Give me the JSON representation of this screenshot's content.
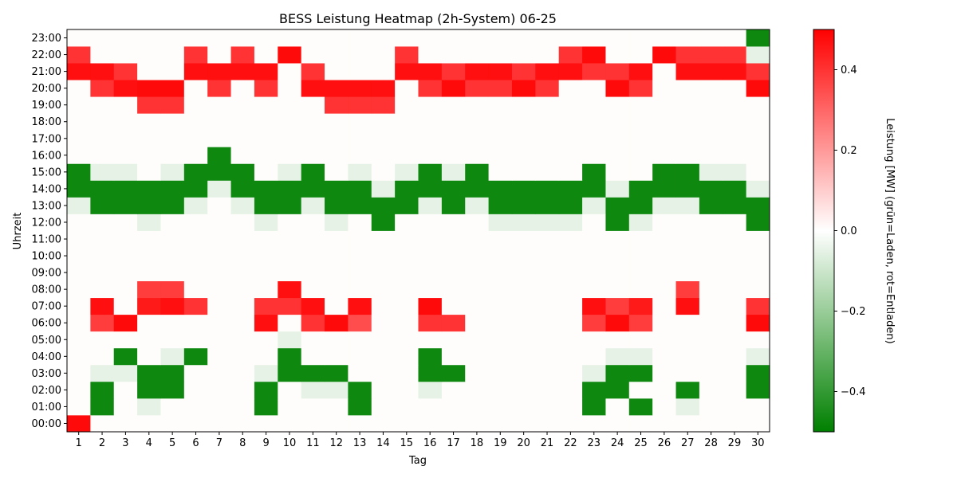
{
  "chart_data": {
    "type": "heatmap",
    "title": "BESS Leistung Heatmap (2h-System) 06-25",
    "xlabel": "Tag",
    "ylabel": "Uhrzeit",
    "colorbar_label": "Leistung [MW] (grün=Laden, rot=Entladen)",
    "colorbar_ticks": [
      -0.4,
      -0.2,
      0.0,
      0.2,
      0.4
    ],
    "colorbar_tick_labels": [
      "−0.4",
      "−0.2",
      "0.0",
      "0.2",
      "0.4"
    ],
    "vmin": -0.5,
    "vmax": 0.5,
    "colors": {
      "negative": "#008000",
      "zero": "#ffffff",
      "positive": "#ff0000"
    },
    "x": [
      1,
      2,
      3,
      4,
      5,
      6,
      7,
      8,
      9,
      10,
      11,
      12,
      13,
      14,
      15,
      16,
      17,
      18,
      19,
      20,
      21,
      22,
      23,
      24,
      25,
      26,
      27,
      28,
      29,
      30
    ],
    "y": [
      "00:00",
      "01:00",
      "02:00",
      "03:00",
      "04:00",
      "05:00",
      "06:00",
      "07:00",
      "08:00",
      "09:00",
      "10:00",
      "11:00",
      "12:00",
      "13:00",
      "14:00",
      "15:00",
      "16:00",
      "17:00",
      "18:00",
      "19:00",
      "20:00",
      "21:00",
      "22:00",
      "23:00"
    ],
    "values": [
      [
        0.48,
        0,
        0,
        0,
        0,
        0,
        0,
        0,
        0,
        0,
        0,
        0,
        0,
        0,
        0,
        0,
        0,
        0,
        0,
        0,
        0,
        0,
        0,
        0,
        0,
        0,
        0,
        0,
        0,
        0
      ],
      [
        0,
        -0.47,
        0,
        -0.05,
        0,
        0,
        0,
        0,
        -0.47,
        0,
        0,
        0,
        -0.47,
        0,
        0,
        0,
        0,
        0,
        0,
        0,
        0,
        0,
        -0.47,
        0,
        -0.47,
        0,
        -0.05,
        0,
        0,
        0
      ],
      [
        0,
        -0.47,
        0,
        -0.47,
        -0.47,
        0,
        0,
        0,
        -0.47,
        0,
        -0.05,
        -0.05,
        -0.47,
        0,
        0,
        -0.05,
        0,
        0,
        0,
        0,
        0,
        0,
        -0.47,
        -0.47,
        0,
        0,
        -0.47,
        0,
        0,
        -0.47
      ],
      [
        0,
        -0.05,
        -0.05,
        -0.47,
        -0.47,
        0,
        0,
        0,
        -0.05,
        -0.47,
        -0.47,
        -0.47,
        0,
        0,
        0,
        -0.47,
        -0.47,
        0,
        0,
        0,
        0,
        0,
        -0.05,
        -0.47,
        -0.47,
        0,
        0,
        0,
        0,
        -0.47
      ],
      [
        0,
        0,
        -0.47,
        0,
        -0.05,
        -0.47,
        0,
        0,
        0,
        -0.47,
        0,
        0,
        0,
        0,
        0,
        -0.47,
        0,
        0,
        0,
        0,
        0,
        0,
        0,
        -0.05,
        -0.05,
        0,
        0,
        0,
        0,
        -0.05
      ],
      [
        0,
        0,
        0,
        0,
        0,
        0,
        0,
        0,
        0,
        -0.05,
        0,
        0,
        0,
        0,
        0,
        0,
        0,
        0,
        0,
        0,
        0,
        0,
        0,
        0,
        0,
        0,
        0,
        0,
        0,
        0
      ],
      [
        0,
        0.38,
        0.48,
        0,
        0,
        0,
        0,
        0,
        0.47,
        0,
        0.4,
        0.48,
        0.35,
        0,
        0,
        0.4,
        0.4,
        0,
        0,
        0,
        0,
        0,
        0.38,
        0.48,
        0.38,
        0,
        0,
        0,
        0,
        0.48
      ],
      [
        0,
        0.47,
        0,
        0.45,
        0.47,
        0.4,
        0,
        0,
        0.4,
        0.4,
        0.47,
        0,
        0.47,
        0,
        0,
        0.48,
        0,
        0,
        0,
        0,
        0,
        0,
        0.47,
        0.38,
        0.45,
        0,
        0.47,
        0,
        0,
        0.4
      ],
      [
        0,
        0,
        0,
        0.38,
        0.38,
        0,
        0,
        0,
        0,
        0.47,
        0,
        0,
        0,
        0,
        0,
        0,
        0,
        0,
        0,
        0,
        0,
        0,
        0,
        0,
        0,
        0,
        0.38,
        0,
        0,
        0
      ],
      [
        0,
        0,
        0,
        0,
        0,
        0,
        0,
        0,
        0,
        0,
        0,
        0,
        0,
        0,
        0,
        0,
        0,
        0,
        0,
        0,
        0,
        0,
        0,
        0,
        0,
        0,
        0,
        0,
        0,
        0
      ],
      [
        0,
        0,
        0,
        0,
        0,
        0,
        0,
        0,
        0,
        0,
        0,
        0,
        0,
        0,
        0,
        0,
        0,
        0,
        0,
        0,
        0,
        0,
        0,
        0,
        0,
        0,
        0,
        0,
        0,
        0
      ],
      [
        0,
        0,
        0,
        0,
        0,
        0,
        0,
        0,
        0,
        0,
        0,
        0,
        0,
        0,
        0,
        0,
        0,
        0,
        0,
        0,
        0,
        0,
        0,
        0,
        0,
        0,
        0,
        0,
        0,
        0
      ],
      [
        0,
        0,
        0,
        -0.05,
        0,
        0,
        0,
        0,
        -0.05,
        0,
        0,
        -0.05,
        0,
        -0.47,
        0,
        0,
        0,
        0,
        -0.05,
        -0.05,
        -0.05,
        -0.05,
        0,
        -0.47,
        -0.05,
        0,
        0,
        0,
        0,
        -0.47
      ],
      [
        -0.05,
        -0.47,
        -0.47,
        -0.47,
        -0.47,
        -0.05,
        0,
        -0.05,
        -0.47,
        -0.47,
        -0.05,
        -0.47,
        -0.47,
        -0.47,
        -0.47,
        -0.05,
        -0.47,
        -0.05,
        -0.47,
        -0.47,
        -0.47,
        -0.47,
        -0.05,
        -0.47,
        -0.47,
        -0.05,
        -0.05,
        -0.47,
        -0.47,
        -0.47
      ],
      [
        -0.47,
        -0.47,
        -0.47,
        -0.47,
        -0.47,
        -0.47,
        -0.05,
        -0.47,
        -0.47,
        -0.47,
        -0.47,
        -0.47,
        -0.47,
        -0.05,
        -0.47,
        -0.47,
        -0.47,
        -0.47,
        -0.47,
        -0.47,
        -0.47,
        -0.47,
        -0.47,
        -0.05,
        -0.47,
        -0.47,
        -0.47,
        -0.47,
        -0.47,
        -0.05
      ],
      [
        -0.47,
        -0.05,
        -0.05,
        0,
        -0.05,
        -0.47,
        -0.47,
        -0.47,
        0,
        -0.05,
        -0.47,
        0,
        -0.05,
        0,
        -0.05,
        -0.47,
        -0.05,
        -0.47,
        0,
        0,
        0,
        0,
        -0.47,
        0,
        0,
        -0.47,
        -0.47,
        -0.05,
        -0.05,
        0
      ],
      [
        0,
        0,
        0,
        0,
        0,
        0,
        -0.47,
        0,
        0,
        0,
        0,
        0,
        0,
        0,
        0,
        0,
        0,
        0,
        0,
        0,
        0,
        0,
        0,
        0,
        0,
        0,
        0,
        0,
        0,
        0
      ],
      [
        0,
        0,
        0,
        0,
        0,
        0,
        0,
        0,
        0,
        0,
        0,
        0,
        0,
        0,
        0,
        0,
        0,
        0,
        0,
        0,
        0,
        0,
        0,
        0,
        0,
        0,
        0,
        0,
        0,
        0
      ],
      [
        0,
        0,
        0,
        0,
        0,
        0,
        0,
        0,
        0,
        0,
        0,
        0,
        0,
        0,
        0,
        0,
        0,
        0,
        0,
        0,
        0,
        0,
        0,
        0,
        0,
        0,
        0,
        0,
        0,
        0
      ],
      [
        0,
        0,
        0,
        0.4,
        0.4,
        0,
        0,
        0,
        0,
        0,
        0,
        0.4,
        0.4,
        0.4,
        0,
        0,
        0,
        0,
        0,
        0,
        0,
        0,
        0,
        0,
        0,
        0,
        0,
        0,
        0,
        0
      ],
      [
        0,
        0.4,
        0.47,
        0.48,
        0.48,
        0,
        0.4,
        0,
        0.4,
        0,
        0.47,
        0.47,
        0.47,
        0.47,
        0,
        0.4,
        0.48,
        0.4,
        0.4,
        0.48,
        0.4,
        0,
        0,
        0.48,
        0.4,
        0,
        0,
        0,
        0,
        0.48
      ],
      [
        0.47,
        0.47,
        0.4,
        0,
        0,
        0.47,
        0.47,
        0.47,
        0.47,
        0,
        0.4,
        0,
        0,
        0,
        0.47,
        0.47,
        0.4,
        0.47,
        0.47,
        0.4,
        0.47,
        0.47,
        0.4,
        0.4,
        0.47,
        0,
        0.47,
        0.47,
        0.47,
        0.4
      ],
      [
        0.4,
        0,
        0,
        0,
        0,
        0.4,
        0,
        0.4,
        0,
        0.48,
        0,
        0,
        0,
        0,
        0.4,
        0,
        0,
        0,
        0,
        0,
        0,
        0.4,
        0.48,
        0,
        0,
        0.48,
        0.4,
        0.4,
        0.4,
        -0.05
      ],
      [
        0,
        0,
        0,
        0,
        0,
        0,
        0,
        0,
        0,
        0,
        0,
        0,
        0,
        0,
        0,
        0,
        0,
        0,
        0,
        0,
        0,
        0,
        0,
        0,
        0,
        0,
        0,
        0,
        0,
        -0.47
      ]
    ]
  }
}
